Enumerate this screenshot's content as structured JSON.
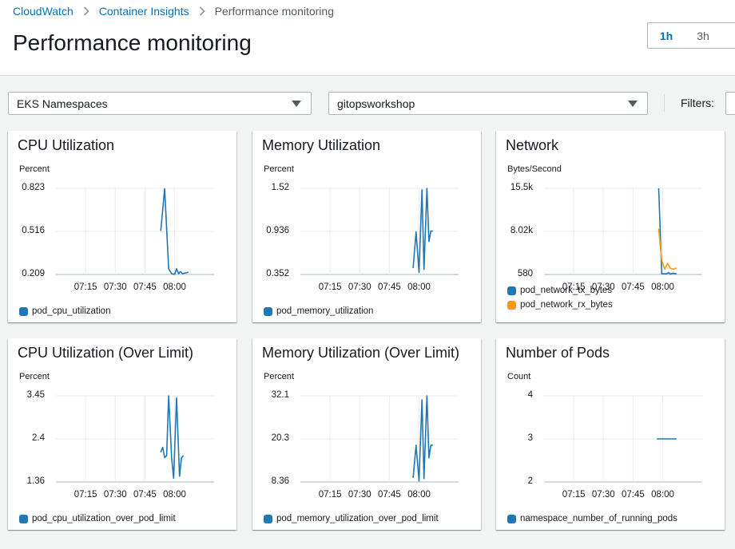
{
  "breadcrumb": {
    "items": [
      "CloudWatch",
      "Container Insights"
    ],
    "current": "Performance monitoring"
  },
  "page_title": "Performance monitoring",
  "time_range": {
    "options": [
      "1h",
      "3h"
    ],
    "selected": "1h"
  },
  "selectors": {
    "resource_type": "EKS Namespaces",
    "namespace": "gitopsworkshop"
  },
  "filters_label": "Filters:",
  "colors": {
    "accent": "#0073bb",
    "series_blue": "#1f77b4",
    "series_orange": "#ff9900"
  },
  "icons": {
    "breadcrumb_separator": "chevron-right-icon",
    "dropdown": "caret-down-icon"
  },
  "chart_data": [
    {
      "type": "line",
      "title": "CPU Utilization",
      "ylabel": "Percent",
      "yticks": [
        "0.823",
        "0.516",
        "0.209"
      ],
      "ylim": [
        0.209,
        0.823
      ],
      "xlim": [
        0,
        80
      ],
      "xticks": [
        {
          "x": 15,
          "label": "07:15"
        },
        {
          "x": 30,
          "label": "07:30"
        },
        {
          "x": 45,
          "label": "07:45"
        },
        {
          "x": 60,
          "label": "08:00"
        }
      ],
      "grid": true,
      "series": [
        {
          "name": "pod_cpu_utilization",
          "color": "#1f77b4",
          "points": [
            [
              53,
              0.52
            ],
            [
              55,
              0.82
            ],
            [
              57,
              0.25
            ],
            [
              58.5,
              0.215
            ],
            [
              60,
              0.21
            ],
            [
              61,
              0.25
            ],
            [
              62,
              0.215
            ],
            [
              63,
              0.23
            ],
            [
              64,
              0.215
            ],
            [
              65.5,
              0.22
            ],
            [
              67,
              0.225
            ]
          ]
        }
      ]
    },
    {
      "type": "line",
      "title": "Memory Utilization",
      "ylabel": "Percent",
      "yticks": [
        "1.52",
        "0.936",
        "0.352"
      ],
      "ylim": [
        0.352,
        1.52
      ],
      "xlim": [
        0,
        80
      ],
      "xticks": [
        {
          "x": 15,
          "label": "07:15"
        },
        {
          "x": 30,
          "label": "07:30"
        },
        {
          "x": 45,
          "label": "07:45"
        },
        {
          "x": 60,
          "label": "08:00"
        }
      ],
      "grid": true,
      "series": [
        {
          "name": "pod_memory_utilization",
          "color": "#1f77b4",
          "points": [
            [
              57,
              0.44
            ],
            [
              58.5,
              0.93
            ],
            [
              60,
              0.38
            ],
            [
              61.5,
              1.5
            ],
            [
              62.5,
              0.42
            ],
            [
              64,
              1.52
            ],
            [
              65,
              0.8
            ],
            [
              66,
              0.94
            ],
            [
              67,
              0.94
            ]
          ]
        }
      ]
    },
    {
      "type": "line",
      "title": "Network",
      "ylabel": "Bytes/Second",
      "yticks": [
        "15.5k",
        "8.02k",
        "580"
      ],
      "ylim": [
        580,
        15500
      ],
      "xlim": [
        0,
        80
      ],
      "xticks": [
        {
          "x": 15,
          "label": "07:15"
        },
        {
          "x": 30,
          "label": "07:30"
        },
        {
          "x": 45,
          "label": "07:45"
        },
        {
          "x": 60,
          "label": "08:00"
        }
      ],
      "grid": true,
      "series": [
        {
          "name": "pod_network_tx_bytes",
          "color": "#1f77b4",
          "points": [
            [
              58,
              15500
            ],
            [
              59.5,
              700
            ],
            [
              62,
              700
            ],
            [
              63,
              900
            ],
            [
              64,
              650
            ],
            [
              65,
              800
            ],
            [
              67,
              700
            ]
          ]
        },
        {
          "name": "pod_network_rx_bytes",
          "color": "#ff9900",
          "points": [
            [
              58,
              8500
            ],
            [
              59.5,
              3000
            ],
            [
              61,
              1500
            ],
            [
              62.5,
              2500
            ],
            [
              64,
              1600
            ],
            [
              65.5,
              1500
            ],
            [
              67,
              1700
            ]
          ]
        }
      ]
    },
    {
      "type": "line",
      "title": "CPU Utilization (Over Limit)",
      "ylabel": "Percent",
      "yticks": [
        "3.45",
        "2.4",
        "1.36"
      ],
      "ylim": [
        1.36,
        3.45
      ],
      "xlim": [
        0,
        80
      ],
      "xticks": [
        {
          "x": 15,
          "label": "07:15"
        },
        {
          "x": 30,
          "label": "07:30"
        },
        {
          "x": 45,
          "label": "07:45"
        },
        {
          "x": 60,
          "label": "08:00"
        }
      ],
      "grid": true,
      "series": [
        {
          "name": "pod_cpu_utilization_over_pod_limit",
          "color": "#1f77b4",
          "points": [
            [
              53,
              2.08
            ],
            [
              54,
              2.2
            ],
            [
              55,
              1.95
            ],
            [
              56,
              2.0
            ],
            [
              57,
              3.45
            ],
            [
              58.5,
              1.95
            ],
            [
              59.5,
              1.45
            ],
            [
              61,
              3.4
            ],
            [
              62.5,
              1.5
            ],
            [
              63.5,
              1.95
            ],
            [
              64.5,
              2.0
            ]
          ]
        }
      ]
    },
    {
      "type": "line",
      "title": "Memory Utilization (Over Limit)",
      "ylabel": "Percent",
      "yticks": [
        "32.1",
        "20.3",
        "8.36"
      ],
      "ylim": [
        8.36,
        32.1
      ],
      "xlim": [
        0,
        80
      ],
      "xticks": [
        {
          "x": 15,
          "label": "07:15"
        },
        {
          "x": 30,
          "label": "07:30"
        },
        {
          "x": 45,
          "label": "07:45"
        },
        {
          "x": 60,
          "label": "08:00"
        }
      ],
      "grid": true,
      "series": [
        {
          "name": "pod_memory_utilization_over_pod_limit",
          "color": "#1f77b4",
          "points": [
            [
              57,
              9.5
            ],
            [
              58.5,
              18.5
            ],
            [
              60,
              8.6
            ],
            [
              61.5,
              31
            ],
            [
              62.5,
              9.3
            ],
            [
              64,
              32.1
            ],
            [
              65,
              15
            ],
            [
              66,
              18.5
            ],
            [
              67,
              18.5
            ]
          ]
        }
      ]
    },
    {
      "type": "line",
      "title": "Number of Pods",
      "ylabel": "Count",
      "yticks": [
        "4",
        "3",
        "2"
      ],
      "ylim": [
        2,
        4
      ],
      "xlim": [
        0,
        80
      ],
      "xticks": [
        {
          "x": 15,
          "label": "07:15"
        },
        {
          "x": 30,
          "label": "07:30"
        },
        {
          "x": 45,
          "label": "07:45"
        },
        {
          "x": 60,
          "label": "08:00"
        }
      ],
      "grid": true,
      "series": [
        {
          "name": "namespace_number_of_running_pods",
          "color": "#1f77b4",
          "points": [
            [
              57,
              3
            ],
            [
              67,
              3
            ]
          ]
        }
      ]
    }
  ]
}
